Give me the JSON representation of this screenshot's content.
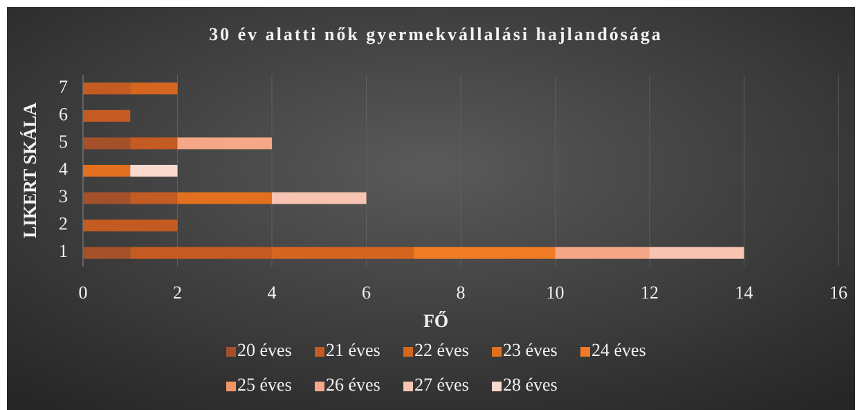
{
  "chart_data": {
    "type": "bar",
    "orientation": "horizontal",
    "stacked": true,
    "title": "30 év alatti nők gyermekvállalási hajlandósága",
    "x_label": "FŐ",
    "y_label": "LIKERT SKÁLA",
    "categories": [
      "1",
      "2",
      "3",
      "4",
      "5",
      "6",
      "7"
    ],
    "series": [
      {
        "name": "20 éves",
        "color": "#a4512a",
        "values": [
          1,
          0,
          1,
          0,
          1,
          0,
          0
        ]
      },
      {
        "name": "21 éves",
        "color": "#c45b22",
        "values": [
          3,
          2,
          1,
          0,
          1,
          1,
          1
        ]
      },
      {
        "name": "22 éves",
        "color": "#d4661f",
        "values": [
          3,
          0,
          0,
          0,
          0,
          0,
          1
        ]
      },
      {
        "name": "23 éves",
        "color": "#e2701e",
        "values": [
          0,
          0,
          2,
          1,
          0,
          0,
          0
        ]
      },
      {
        "name": "24 éves",
        "color": "#f07b24",
        "values": [
          3,
          0,
          0,
          0,
          0,
          0,
          0
        ]
      },
      {
        "name": "25 éves",
        "color": "#f39465",
        "values": [
          0,
          0,
          0,
          0,
          0,
          0,
          0
        ]
      },
      {
        "name": "26 éves",
        "color": "#f4a887",
        "values": [
          2,
          0,
          0,
          0,
          2,
          0,
          0
        ]
      },
      {
        "name": "27 éves",
        "color": "#f7c4b2",
        "values": [
          2,
          0,
          2,
          0,
          0,
          0,
          0
        ]
      },
      {
        "name": "28 éves",
        "color": "#fad9cf",
        "values": [
          0,
          0,
          0,
          1,
          0,
          0,
          0
        ]
      }
    ],
    "xlim": [
      0,
      16
    ],
    "xticks": [
      0,
      2,
      4,
      6,
      8,
      10,
      12,
      14,
      16
    ],
    "grid": true,
    "legend": "bottom"
  }
}
